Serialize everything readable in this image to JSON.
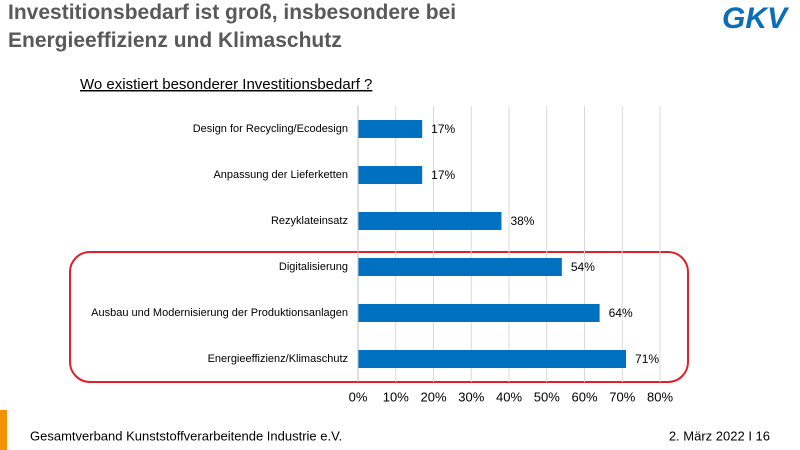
{
  "chart_data": {
    "type": "bar",
    "orientation": "horizontal",
    "title": "Investitionsbedarf ist groß, insbesondere bei Energieeffizienz und Klimaschutz",
    "subtitle": "Wo existiert besonderer Investitionsbedarf ?",
    "categories": [
      "Design for Recycling/Ecodesign",
      "Anpassung der Lieferketten",
      "Rezyklateinsatz",
      "Digitalisierung",
      "Ausbau und Modernisierung der Produktionsanlagen",
      "Energieeffizienz/Klimaschutz"
    ],
    "values": [
      17,
      17,
      38,
      54,
      64,
      71
    ],
    "value_labels": [
      "17%",
      "17%",
      "38%",
      "54%",
      "64%",
      "71%"
    ],
    "color": "#0070c0",
    "xlim": [
      0,
      80
    ],
    "xticks": [
      {
        "value": 0,
        "label": "0%"
      },
      {
        "value": 10,
        "label": "10%"
      },
      {
        "value": 20,
        "label": "20%"
      },
      {
        "value": 30,
        "label": "30%"
      },
      {
        "value": 40,
        "label": "40%"
      },
      {
        "value": 50,
        "label": "50%"
      },
      {
        "value": 60,
        "label": "60%"
      },
      {
        "value": 70,
        "label": "70%"
      },
      {
        "value": 80,
        "label": "80%"
      }
    ],
    "grid": true
  },
  "logo": "GKV",
  "footer": {
    "organization": "Gesamtverband Kunststoffverarbeitende Industrie e.V.",
    "date_page": "2. März 2022 I 16"
  }
}
